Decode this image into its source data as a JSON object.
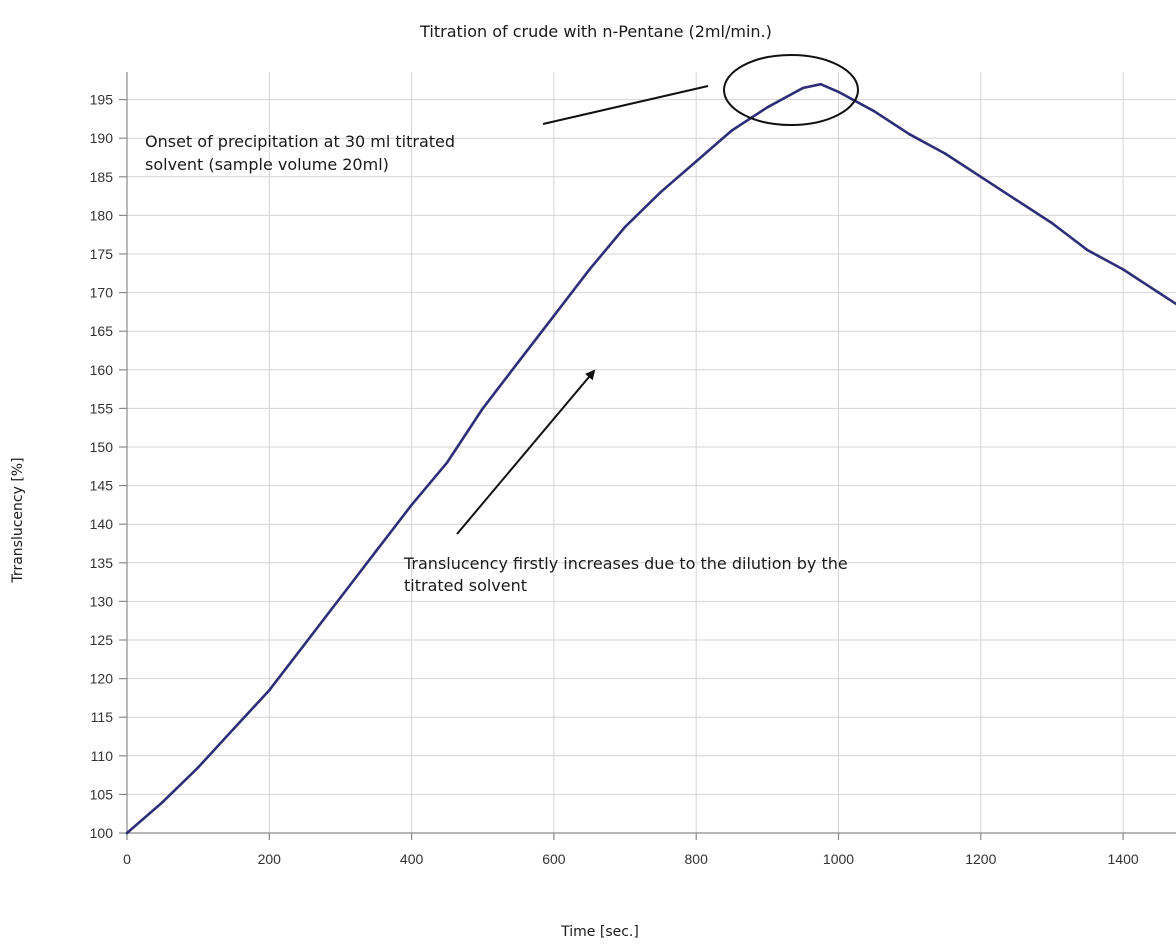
{
  "chart_data": {
    "type": "line",
    "title": "Titration of crude with n-Pentane (2ml/min.)",
    "xlabel": "Time [sec.]",
    "ylabel": "Trranslucency [%]",
    "xlim": [
      0,
      1500
    ],
    "ylim": [
      100,
      197.5
    ],
    "x_ticks": [
      0,
      200,
      400,
      600,
      800,
      1000,
      1200,
      1400
    ],
    "y_ticks": [
      100,
      105,
      110,
      115,
      120,
      125,
      130,
      135,
      140,
      145,
      150,
      155,
      160,
      165,
      170,
      175,
      180,
      185,
      190,
      195
    ],
    "grid": true,
    "series": [
      {
        "color": "#2e2e78",
        "x": [
          0,
          50,
          100,
          150,
          200,
          250,
          300,
          350,
          400,
          450,
          500,
          550,
          600,
          650,
          700,
          750,
          800,
          850,
          900,
          950,
          975,
          1000,
          1050,
          1100,
          1150,
          1200,
          1250,
          1300,
          1350,
          1400,
          1450,
          1500
        ],
        "y": [
          100,
          104,
          108.5,
          113.5,
          118.5,
          124.5,
          130.5,
          136.5,
          142.5,
          148,
          155,
          161,
          167,
          173,
          178.5,
          183,
          187,
          191,
          194,
          196.5,
          197,
          196,
          193.5,
          190.5,
          188,
          185,
          182,
          179,
          175.5,
          173,
          170,
          167
        ]
      }
    ],
    "annotations": [
      {
        "id": "onset",
        "lines": [
          "Onset of precipitation at 30 ml titrated",
          "solvent (sample volume 20ml)"
        ]
      },
      {
        "id": "dilution",
        "lines": [
          "Translucency firstly increases due to the dilution by the",
          "titrated solvent"
        ]
      }
    ]
  }
}
